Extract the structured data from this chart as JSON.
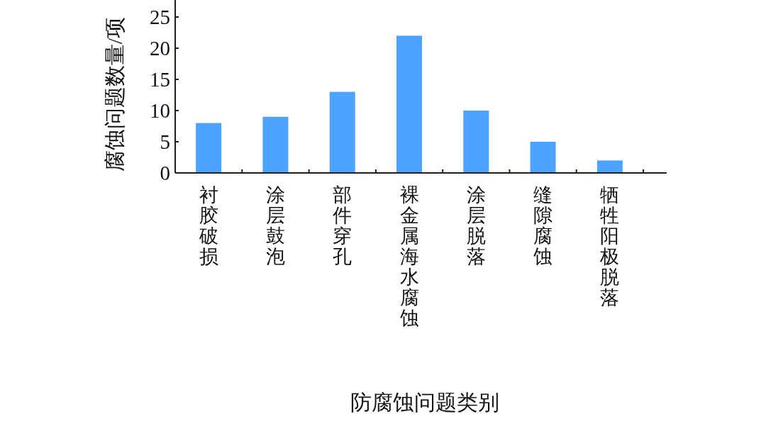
{
  "chart_data": {
    "type": "bar",
    "xlabel": "防腐蚀问题类别",
    "ylabel": "腐蚀问题数量/项",
    "categories": [
      "衬胶破损",
      "涂层鼓泡",
      "部件穿孔",
      "裸金属海水腐蚀",
      "涂层脱落",
      "缝隙腐蚀",
      "牺牲阳极脱落"
    ],
    "values": [
      8,
      9,
      13,
      22,
      10,
      5,
      2
    ],
    "color": "#4da3ff",
    "ylim": [
      0,
      27.5
    ],
    "yticks": [
      0,
      5,
      10,
      15,
      20,
      25
    ],
    "grid": false
  }
}
